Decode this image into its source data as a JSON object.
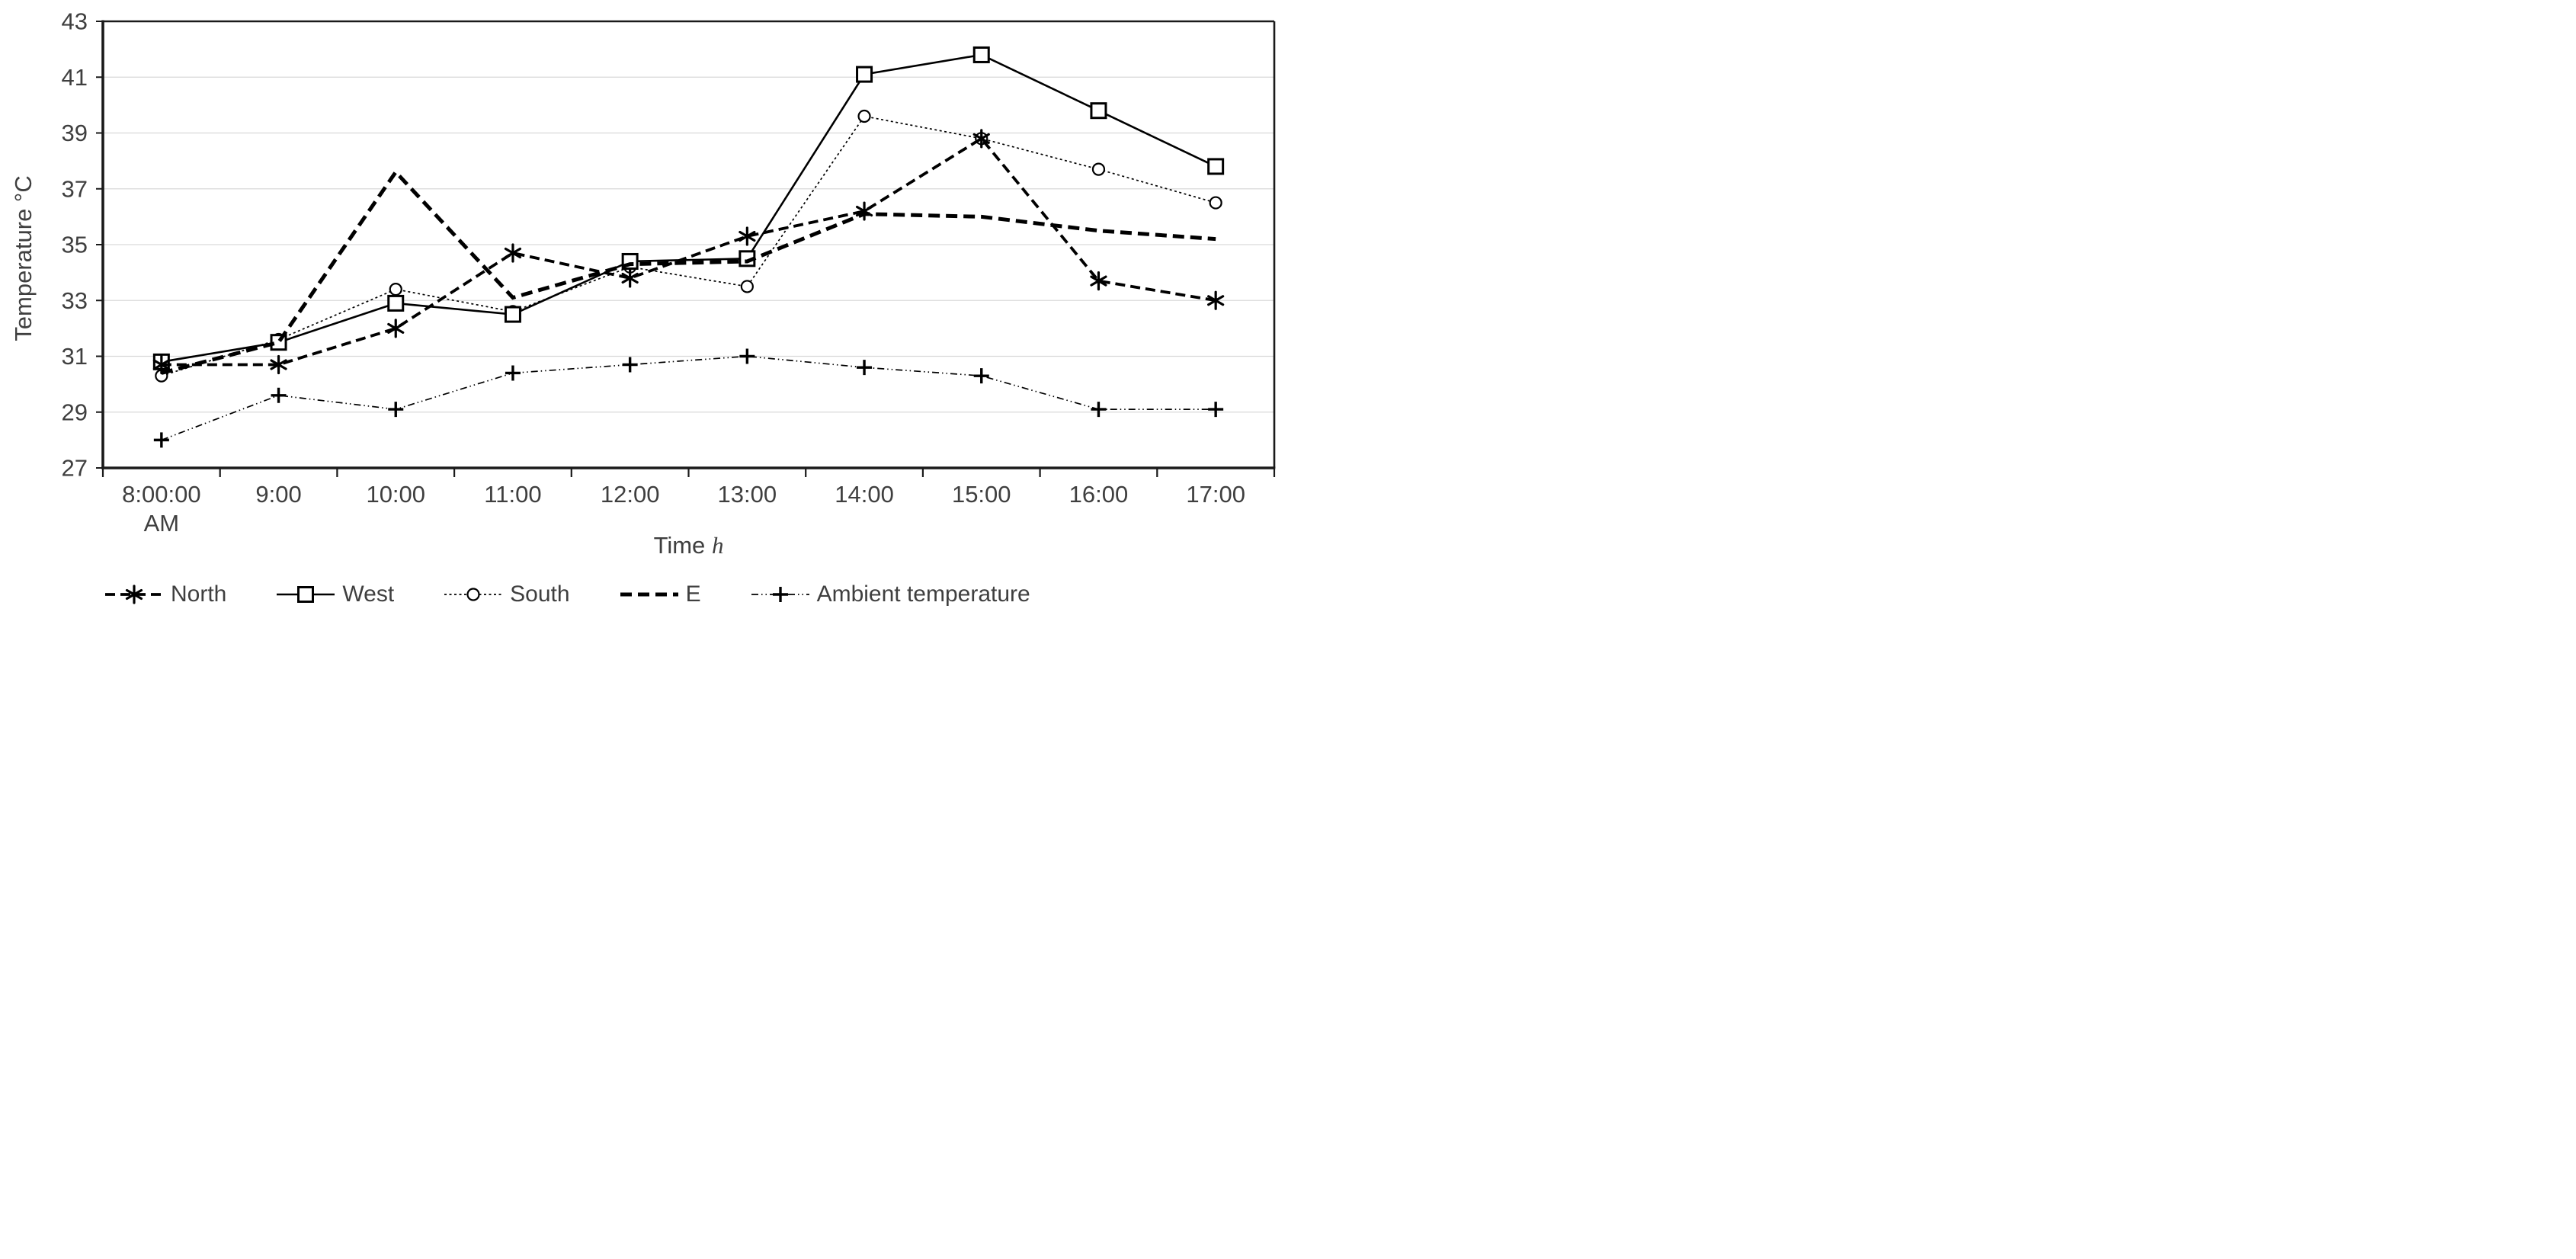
{
  "chart_data": {
    "type": "line",
    "title": "",
    "xlabel_text": "Time",
    "xlabel_var": "h",
    "ylabel": "Temperature °C",
    "categories": [
      "8:00:00\nAM",
      "9:00",
      "10:00",
      "11:00",
      "12:00",
      "13:00",
      "14:00",
      "15:00",
      "16:00",
      "17:00"
    ],
    "ylim": [
      27,
      43
    ],
    "yticks": [
      27,
      29,
      31,
      33,
      35,
      37,
      39,
      41,
      43
    ],
    "grid": "horizontal-only",
    "legend_position": "bottom",
    "series": [
      {
        "name": "North",
        "style": "dashed-thick",
        "marker": "asterisk",
        "values": [
          30.7,
          30.7,
          32.0,
          34.7,
          33.8,
          35.3,
          36.2,
          38.8,
          33.7,
          33.0
        ]
      },
      {
        "name": "West",
        "style": "solid",
        "marker": "square",
        "values": [
          30.8,
          31.5,
          32.9,
          32.5,
          34.4,
          34.5,
          41.1,
          41.8,
          39.8,
          37.8
        ]
      },
      {
        "name": "South",
        "style": "dotted",
        "marker": "circle",
        "values": [
          30.3,
          31.6,
          33.4,
          32.6,
          34.2,
          33.5,
          39.6,
          38.8,
          37.7,
          36.5
        ]
      },
      {
        "name": "E",
        "style": "dashed-xthick",
        "marker": "none",
        "values": [
          30.4,
          31.5,
          37.6,
          33.1,
          34.3,
          34.4,
          36.1,
          36.0,
          35.5,
          35.2
        ]
      },
      {
        "name": "Ambient temperature",
        "style": "dashdotdot",
        "marker": "plus",
        "values": [
          28.0,
          29.6,
          29.1,
          30.4,
          30.7,
          31.0,
          30.6,
          30.3,
          29.1,
          29.1
        ]
      }
    ],
    "colors": {
      "series_line": "#000000",
      "grid": "#d9d9d9",
      "axis": "#1a1a1a",
      "text": "#3f3f3f",
      "background": "#ffffff"
    }
  }
}
